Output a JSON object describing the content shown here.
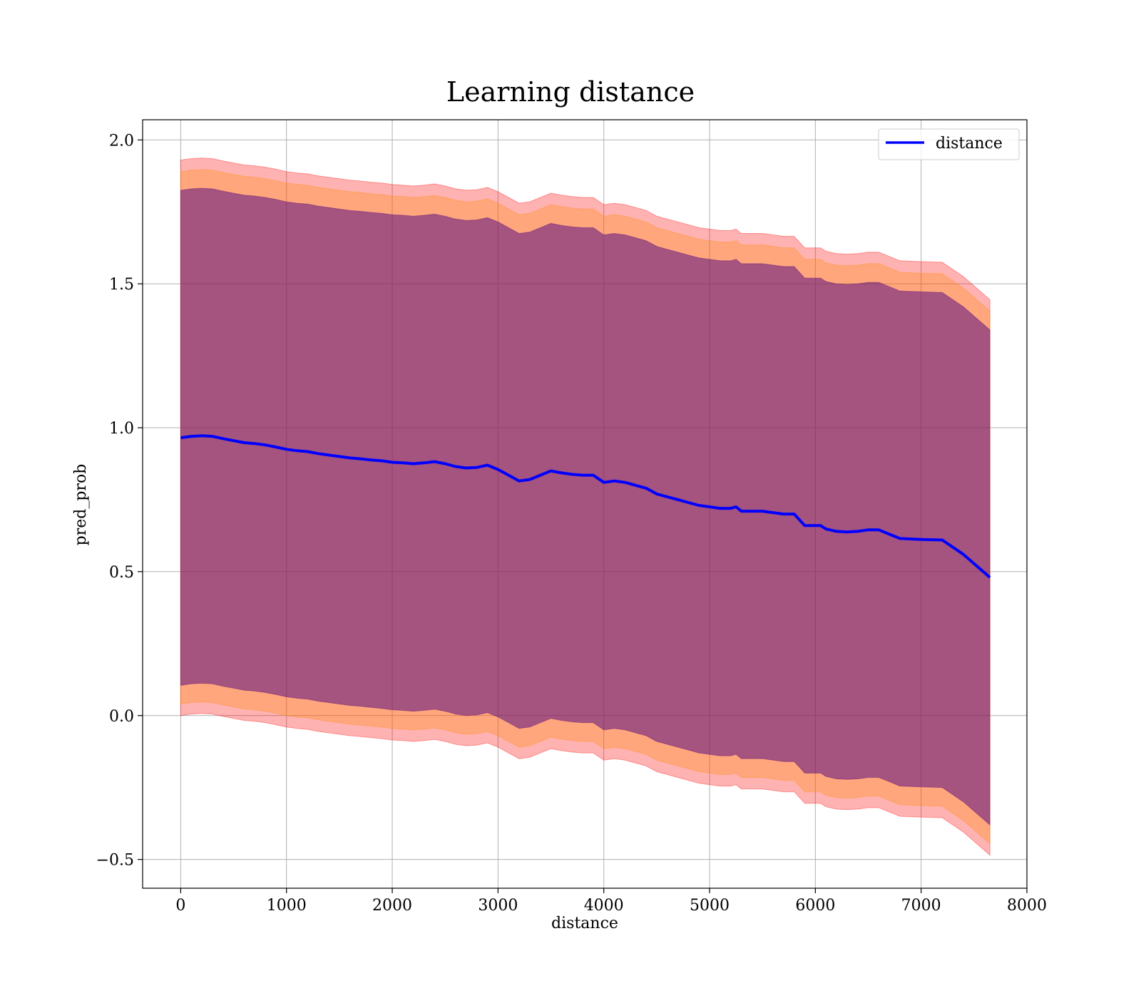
{
  "chart_data": {
    "type": "line",
    "title": "Learning distance",
    "xlabel": "distance",
    "ylabel": "pred_prob",
    "xlim": [
      -360,
      8000
    ],
    "ylim": [
      -0.6,
      2.07
    ],
    "xticks": [
      0,
      1000,
      2000,
      3000,
      4000,
      5000,
      6000,
      7000,
      8000
    ],
    "yticks": [
      -0.5,
      0.0,
      0.5,
      1.0,
      1.5,
      2.0
    ],
    "xtick_labels": [
      "0",
      "1000",
      "2000",
      "3000",
      "4000",
      "5000",
      "6000",
      "7000",
      "8000"
    ],
    "ytick_labels": [
      "−0.5",
      "0.0",
      "0.5",
      "1.0",
      "1.5",
      "2.0"
    ],
    "grid": true,
    "legend": {
      "placement": "top-right",
      "entries": [
        "distance"
      ]
    },
    "colors": {
      "line": "#0000ff",
      "band_outer": "#ff0000",
      "band_middle": "#ff8c00",
      "band_inner": "#4b0082",
      "grid": "#b0b0b0"
    },
    "series": [
      {
        "name": "distance",
        "x": [
          0,
          100,
          200,
          300,
          400,
          500,
          600,
          700,
          800,
          900,
          1000,
          1100,
          1200,
          1300,
          1400,
          1500,
          1600,
          1700,
          1800,
          1900,
          2000,
          2100,
          2200,
          2300,
          2400,
          2500,
          2600,
          2700,
          2800,
          2900,
          3000,
          3100,
          3200,
          3300,
          3400,
          3500,
          3600,
          3700,
          3800,
          3900,
          4000,
          4100,
          4200,
          4300,
          4400,
          4500,
          4600,
          4700,
          4800,
          4900,
          5000,
          5100,
          5200,
          5250,
          5300,
          5400,
          5500,
          5600,
          5700,
          5800,
          5900,
          6000,
          6050,
          6100,
          6200,
          6300,
          6400,
          6500,
          6600,
          6700,
          6800,
          7000,
          7200,
          7400,
          7650
        ],
        "values": [
          0.965,
          0.97,
          0.972,
          0.97,
          0.962,
          0.955,
          0.948,
          0.945,
          0.94,
          0.933,
          0.925,
          0.92,
          0.917,
          0.91,
          0.905,
          0.9,
          0.895,
          0.892,
          0.888,
          0.885,
          0.88,
          0.878,
          0.875,
          0.878,
          0.882,
          0.875,
          0.865,
          0.86,
          0.862,
          0.87,
          0.855,
          0.835,
          0.815,
          0.82,
          0.835,
          0.85,
          0.843,
          0.838,
          0.835,
          0.835,
          0.81,
          0.815,
          0.81,
          0.8,
          0.79,
          0.77,
          0.76,
          0.75,
          0.74,
          0.73,
          0.725,
          0.72,
          0.72,
          0.725,
          0.71,
          0.71,
          0.71,
          0.705,
          0.7,
          0.7,
          0.66,
          0.66,
          0.66,
          0.648,
          0.64,
          0.638,
          0.64,
          0.645,
          0.645,
          0.63,
          0.615,
          0.612,
          0.61,
          0.56,
          0.48
        ]
      }
    ],
    "bands": [
      {
        "name": "outer",
        "half_width": 0.965
      },
      {
        "name": "middle",
        "half_width": 0.925
      },
      {
        "name": "inner",
        "half_width": 0.86
      }
    ]
  }
}
